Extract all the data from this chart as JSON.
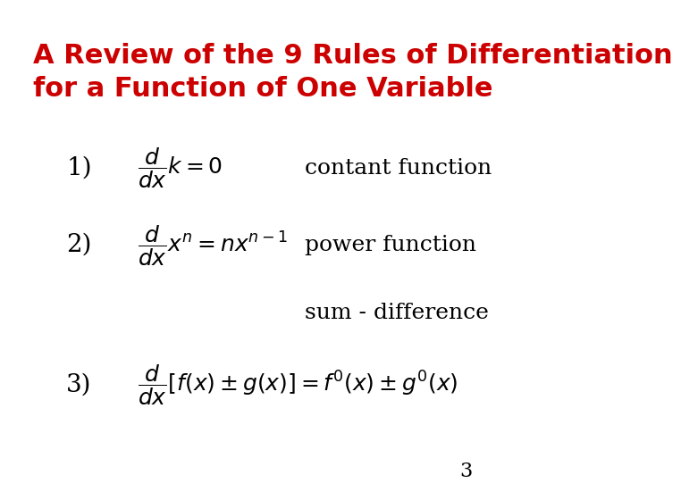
{
  "background_color": "#ffffff",
  "title_line1": "A Review of the 9 Rules of Differentiation",
  "title_line2": "for a Function of One Variable",
  "title_color": "#cc0000",
  "title_fontsize": 22,
  "title_bold": true,
  "rule1_number": "1)",
  "rule1_label": "contant function",
  "rule2_number": "2)",
  "rule2_label": "power function",
  "rule3_label": "sum - difference",
  "rule3_number": "3)",
  "page_number": "3",
  "formula_fontsize": 18,
  "label_fontsize": 18,
  "number_fontsize": 20,
  "page_fontsize": 16
}
